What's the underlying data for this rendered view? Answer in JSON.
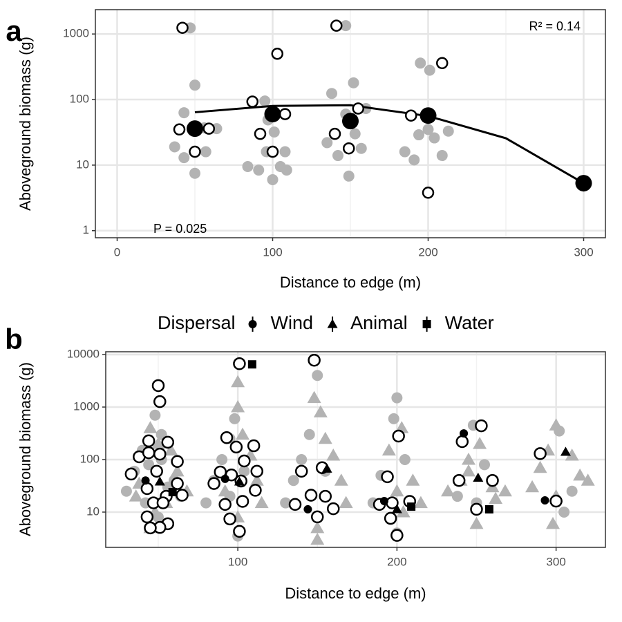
{
  "chart_data": [
    {
      "type": "scatter",
      "tag": "a",
      "xlabel": "Distance to edge (m)",
      "ylabel": "Aboveground biomass (g)",
      "xlim": [
        -14,
        314
      ],
      "ylim": [
        0.78,
        2350
      ],
      "log_y": true,
      "grid": true,
      "xticks": [
        0,
        100,
        200,
        300
      ],
      "xminor": [
        50,
        150,
        250
      ],
      "yticks": [
        1,
        10,
        100,
        1000
      ],
      "annotations": {
        "r2": "R² = 0.14",
        "p": "P = 0.025"
      },
      "layers": [
        {
          "fill": "#b3b3b3",
          "stroke": "none",
          "shape": 0,
          "x": [
            47,
            50,
            43,
            56,
            64,
            37,
            43,
            57,
            50,
            95,
            101,
            101,
            97,
            84,
            91,
            96,
            105,
            109,
            100,
            108,
            147,
            138,
            152,
            147,
            160,
            153,
            135,
            142,
            157,
            149,
            195,
            201,
            194,
            191,
            200,
            204,
            213,
            209,
            185
          ],
          "y": [
            1240,
            166,
            63,
            37,
            36,
            19,
            13,
            16,
            7.5,
            95,
            63,
            32,
            49,
            9.5,
            8.4,
            16,
            9.5,
            8.4,
            6,
            16,
            1340,
            124,
            180,
            60,
            73,
            30,
            22,
            14,
            18,
            6.8,
            360,
            280,
            29,
            12,
            35,
            26,
            33,
            14,
            16
          ]
        },
        {
          "fill": "#ffffff",
          "stroke": "#000000",
          "shape": 0,
          "x": [
            42,
            40,
            50,
            59,
            87,
            92,
            103,
            108,
            100,
            141,
            140,
            149,
            155,
            189,
            209,
            200
          ],
          "y": [
            1244,
            35,
            16,
            36,
            93,
            30,
            500,
            60,
            16,
            1340,
            30,
            18,
            73,
            57,
            360,
            3.8
          ]
        },
        {
          "fill": "#000000",
          "stroke": "none",
          "shape": 0,
          "x": [
            50,
            100,
            150,
            200,
            300
          ],
          "y": [
            36,
            60,
            47,
            57,
            5.3
          ]
        }
      ],
      "fit": {
        "color": "#000000",
        "x": [
          50,
          100,
          150,
          200,
          250,
          300
        ],
        "y": [
          64,
          80,
          82,
          56,
          25.7,
          5.3
        ]
      }
    },
    {
      "type": "scatter",
      "tag": "b",
      "xlabel": "Distance to edge (m)",
      "ylabel": "Aboveground biomass (g)",
      "xlim": [
        17,
        331
      ],
      "ylim": [
        2.13,
        11290
      ],
      "log_y": true,
      "grid": true,
      "xticks": [
        100,
        200,
        300
      ],
      "xminor": [
        50,
        150,
        250
      ],
      "yticks": [
        10,
        100,
        1000,
        10000
      ],
      "legend": {
        "title": "Dispersal",
        "position": "top",
        "entries": [
          {
            "name": "Wind",
            "shape": "circle"
          },
          {
            "name": "Animal",
            "shape": "triangle"
          },
          {
            "name": "Water",
            "shape": "square"
          }
        ]
      },
      "layers": [
        {
          "fill": "#b3b3b3",
          "stroke": "none",
          "x": [
            48,
            45,
            52,
            40,
            58,
            35,
            62,
            30,
            68,
            42,
            55,
            50,
            45,
            52,
            38,
            60,
            50,
            44,
            56,
            36,
            64,
            48,
            100,
            100,
            98,
            95,
            103,
            90,
            108,
            85,
            112,
            80,
            115,
            95,
            100,
            104,
            92,
            100,
            150,
            148,
            152,
            145,
            155,
            140,
            160,
            135,
            165,
            130,
            168,
            150,
            146,
            155,
            150,
            200,
            198,
            203,
            195,
            205,
            190,
            210,
            185,
            215,
            200,
            196,
            204,
            200,
            248,
            252,
            245,
            255,
            240,
            260,
            232,
            268,
            250,
            245,
            250,
            238,
            262,
            300,
            302,
            295,
            310,
            290,
            315,
            285,
            320,
            300,
            305,
            298,
            310
          ],
          "y": [
            700,
            400,
            300,
            150,
            150,
            60,
            60,
            25,
            25,
            15,
            15,
            8,
            5,
            100,
            35,
            40,
            200,
            80,
            30,
            20,
            20,
            10,
            3000,
            1000,
            600,
            250,
            300,
            100,
            120,
            40,
            40,
            15,
            15,
            20,
            8,
            60,
            25,
            3.5,
            4000,
            1500,
            800,
            300,
            250,
            100,
            120,
            40,
            40,
            15,
            15,
            5,
            20,
            60,
            3,
            1500,
            600,
            400,
            150,
            100,
            50,
            40,
            15,
            15,
            25,
            8,
            10,
            4,
            450,
            200,
            100,
            80,
            40,
            30,
            25,
            25,
            15,
            60,
            6,
            20,
            18,
            450,
            350,
            150,
            120,
            70,
            50,
            30,
            40,
            20,
            10,
            6,
            25
          ],
          "shape": [
            0,
            1,
            0,
            0,
            1,
            0,
            1,
            0,
            1,
            0,
            1,
            0,
            1,
            0,
            1,
            0,
            1,
            0,
            0,
            1,
            0,
            1,
            1,
            1,
            0,
            0,
            1,
            0,
            1,
            0,
            1,
            0,
            1,
            0,
            1,
            0,
            1,
            0,
            0,
            1,
            1,
            0,
            1,
            0,
            1,
            0,
            1,
            0,
            1,
            1,
            0,
            0,
            1,
            0,
            0,
            1,
            1,
            0,
            0,
            1,
            0,
            1,
            1,
            0,
            1,
            0,
            0,
            1,
            1,
            0,
            1,
            1,
            1,
            1,
            0,
            1,
            1,
            0,
            1,
            1,
            0,
            1,
            1,
            1,
            1,
            1,
            1,
            1,
            0,
            1,
            0
          ]
        },
        {
          "fill": "#ffffff",
          "stroke": "#000000",
          "shape": 0,
          "x": [
            50,
            51,
            44,
            56,
            38,
            44,
            51,
            62,
            49,
            33,
            62,
            43,
            65,
            55,
            47,
            53,
            43,
            56,
            51,
            45,
            101,
            93,
            99,
            110,
            89,
            104,
            112,
            96,
            102,
            85,
            111,
            92,
            103,
            95,
            101,
            148,
            140,
            153,
            146,
            155,
            160,
            136,
            150,
            194,
            189,
            201,
            196,
            208,
            197,
            200,
            241,
            253,
            239,
            260,
            250,
            290,
            300
          ],
          "y": [
            2560,
            1270,
            227,
            214,
            113,
            135,
            127,
            92,
            60,
            53,
            35,
            28,
            21,
            20,
            15,
            15,
            8.1,
            6,
            5.1,
            5,
            6700,
            262,
            173,
            183,
            58,
            94,
            60,
            51,
            39,
            35,
            26,
            14,
            16,
            7.4,
            4.3,
            7800,
            60,
            70,
            21,
            20,
            11.6,
            14,
            8.1,
            47,
            14,
            280,
            7.6,
            16,
            15,
            3.6,
            220,
            440,
            40,
            40,
            11.3,
            130,
            16.2
          ]
        },
        {
          "fill": "#000000",
          "stroke": "none",
          "x": [
            42,
            92,
            144,
            192,
            242,
            293,
            51,
            101,
            156,
            200,
            251,
            306,
            59,
            109,
            209,
            258
          ],
          "y": [
            40,
            43,
            11.3,
            16.2,
            315,
            16.7,
            38,
            38,
            67,
            11.3,
            45,
            140,
            24,
            6500,
            12.7,
            11.3
          ],
          "shape": [
            0,
            0,
            0,
            0,
            0,
            0,
            1,
            1,
            1,
            1,
            1,
            1,
            2,
            2,
            2,
            2
          ]
        }
      ]
    }
  ]
}
